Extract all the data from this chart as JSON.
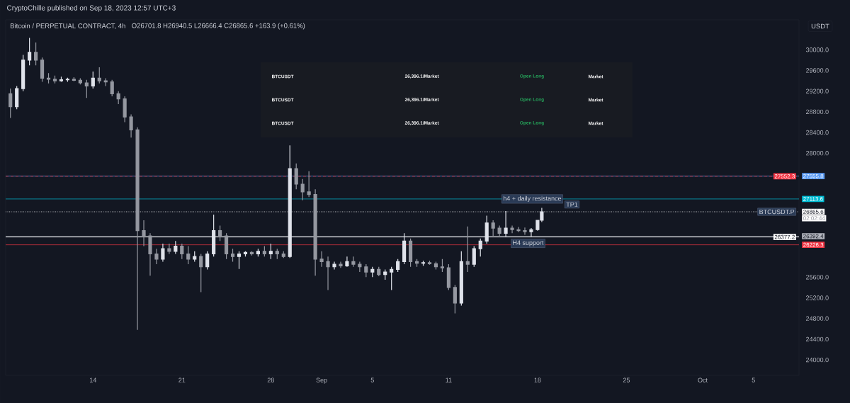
{
  "chart_data": {
    "type": "candlestick",
    "title": "Bitcoin / PERPETUAL CONTRACT, 4h",
    "subtitle": "O26701.8 H26940.5 L26666.4 C26865.6 +163.9 (+0.61%)",
    "x": [
      "2023-08-07T12:00",
      "2023-08-08T00:00",
      "2023-08-08T12:00",
      "2023-08-09T00:00",
      "2023-08-09T12:00",
      "2023-08-10T00:00",
      "2023-08-10T12:00",
      "2023-08-11T00:00",
      "2023-08-11T12:00",
      "2023-08-12T00:00",
      "2023-08-12T12:00",
      "2023-08-13T00:00",
      "2023-08-13T12:00",
      "2023-08-14T00:00",
      "2023-08-14T12:00",
      "2023-08-15T00:00",
      "2023-08-15T12:00",
      "2023-08-16T00:00",
      "2023-08-16T12:00",
      "2023-08-17T00:00",
      "2023-08-17T12:00",
      "2023-08-18T00:00",
      "2023-08-18T12:00",
      "2023-08-19T00:00",
      "2023-08-19T12:00",
      "2023-08-20T00:00",
      "2023-08-20T12:00",
      "2023-08-21T00:00",
      "2023-08-21T12:00",
      "2023-08-22T00:00",
      "2023-08-22T12:00",
      "2023-08-23T00:00",
      "2023-08-23T12:00",
      "2023-08-24T00:00",
      "2023-08-24T12:00",
      "2023-08-25T00:00",
      "2023-08-25T12:00",
      "2023-08-26T00:00",
      "2023-08-26T12:00",
      "2023-08-27T00:00",
      "2023-08-27T12:00",
      "2023-08-28T00:00",
      "2023-08-28T12:00",
      "2023-08-29T00:00",
      "2023-08-29T12:00",
      "2023-08-30T00:00",
      "2023-08-30T12:00",
      "2023-08-31T00:00",
      "2023-08-31T12:00",
      "2023-09-01T00:00",
      "2023-09-01T12:00",
      "2023-09-02T00:00",
      "2023-09-02T12:00",
      "2023-09-03T00:00",
      "2023-09-03T12:00",
      "2023-09-04T00:00",
      "2023-09-04T12:00",
      "2023-09-05T00:00",
      "2023-09-05T12:00",
      "2023-09-06T00:00",
      "2023-09-06T12:00",
      "2023-09-07T00:00",
      "2023-09-07T12:00",
      "2023-09-08T00:00",
      "2023-09-08T12:00",
      "2023-09-09T00:00",
      "2023-09-09T12:00",
      "2023-09-10T00:00",
      "2023-09-10T12:00",
      "2023-09-11T00:00",
      "2023-09-11T12:00",
      "2023-09-12T00:00",
      "2023-09-12T12:00",
      "2023-09-13T00:00",
      "2023-09-13T12:00",
      "2023-09-14T00:00",
      "2023-09-14T12:00",
      "2023-09-15T00:00",
      "2023-09-15T12:00",
      "2023-09-16T00:00",
      "2023-09-16T12:00",
      "2023-09-17T00:00",
      "2023-09-17T12:00",
      "2023-09-18T00:00",
      "2023-09-18T08:00"
    ],
    "ohlc": [
      [
        29150,
        29250,
        28680,
        28900
      ],
      [
        28900,
        29300,
        28850,
        29250
      ],
      [
        29250,
        29900,
        29200,
        29800
      ],
      [
        29800,
        30230,
        29700,
        29950
      ],
      [
        29950,
        30140,
        29700,
        29800
      ],
      [
        29800,
        29850,
        29380,
        29450
      ],
      [
        29450,
        29550,
        29350,
        29430
      ],
      [
        29430,
        29500,
        29350,
        29400
      ],
      [
        29400,
        29480,
        29380,
        29420
      ],
      [
        29420,
        29460,
        29380,
        29430
      ],
      [
        29430,
        29470,
        29390,
        29410
      ],
      [
        29410,
        29450,
        29330,
        29360
      ],
      [
        29360,
        29420,
        29070,
        29300
      ],
      [
        29300,
        29580,
        29250,
        29450
      ],
      [
        29450,
        29660,
        29350,
        29400
      ],
      [
        29400,
        29450,
        29300,
        29380
      ],
      [
        29380,
        29420,
        29100,
        29150
      ],
      [
        29150,
        29200,
        28950,
        29050
      ],
      [
        29050,
        29100,
        28600,
        28700
      ],
      [
        28700,
        28750,
        28300,
        28450
      ],
      [
        28450,
        28500,
        24580,
        26500
      ],
      [
        26500,
        26700,
        26200,
        26400
      ],
      [
        26400,
        26450,
        25630,
        26050
      ],
      [
        26050,
        26150,
        25850,
        25950
      ],
      [
        25950,
        26250,
        25900,
        26150
      ],
      [
        26150,
        26250,
        26050,
        26100
      ],
      [
        26100,
        26300,
        26050,
        26200
      ],
      [
        26200,
        26250,
        25950,
        26050
      ],
      [
        26050,
        26200,
        25850,
        25950
      ],
      [
        25950,
        26100,
        25900,
        26000
      ],
      [
        26000,
        26050,
        25310,
        25800
      ],
      [
        25800,
        26100,
        25750,
        26050
      ],
      [
        26050,
        26810,
        26000,
        26500
      ],
      [
        26500,
        26600,
        26300,
        26400
      ],
      [
        26400,
        26450,
        25950,
        26050
      ],
      [
        26050,
        26150,
        25900,
        26000
      ],
      [
        26000,
        26100,
        25760,
        26050
      ],
      [
        26050,
        26100,
        26000,
        26080
      ],
      [
        26080,
        26100,
        26020,
        26050
      ],
      [
        26050,
        26150,
        26000,
        26100
      ],
      [
        26100,
        26200,
        26000,
        26050
      ],
      [
        26050,
        26250,
        25950,
        26100
      ],
      [
        26100,
        26150,
        25950,
        26050
      ],
      [
        26050,
        26100,
        25970,
        26000
      ],
      [
        26000,
        28150,
        25970,
        27700
      ],
      [
        27700,
        27800,
        27300,
        27400
      ],
      [
        27400,
        27500,
        27090,
        27250
      ],
      [
        27250,
        27650,
        27150,
        27200
      ],
      [
        27200,
        27300,
        25630,
        25950
      ],
      [
        25950,
        26100,
        25800,
        25900
      ],
      [
        25900,
        26000,
        25350,
        25800
      ],
      [
        25800,
        25900,
        25750,
        25850
      ],
      [
        25850,
        25900,
        25780,
        25820
      ],
      [
        25820,
        26000,
        25800,
        25900
      ],
      [
        25900,
        26000,
        25800,
        25850
      ],
      [
        25850,
        25900,
        25700,
        25800
      ],
      [
        25800,
        25850,
        25600,
        25700
      ],
      [
        25700,
        25800,
        25600,
        25750
      ],
      [
        25750,
        25800,
        25620,
        25650
      ],
      [
        25650,
        25750,
        25550,
        25700
      ],
      [
        25700,
        25800,
        25350,
        25750
      ],
      [
        25750,
        25950,
        25700,
        25900
      ],
      [
        25900,
        26450,
        25850,
        26300
      ],
      [
        26300,
        26350,
        25800,
        25900
      ],
      [
        25900,
        25950,
        25800,
        25870
      ],
      [
        25870,
        25920,
        25820,
        25880
      ],
      [
        25880,
        25920,
        25840,
        25860
      ],
      [
        25860,
        25900,
        25750,
        25800
      ],
      [
        25800,
        25950,
        25700,
        25780
      ],
      [
        25780,
        25850,
        25350,
        25400
      ],
      [
        25400,
        25450,
        24900,
        25100
      ],
      [
        25100,
        26100,
        25050,
        25900
      ],
      [
        25900,
        26580,
        25700,
        25850
      ],
      [
        25850,
        26200,
        25800,
        26150
      ],
      [
        26150,
        26350,
        26000,
        26300
      ],
      [
        26300,
        26790,
        26250,
        26650
      ],
      [
        26650,
        26700,
        26400,
        26550
      ],
      [
        26550,
        26600,
        26400,
        26450
      ],
      [
        26450,
        26880,
        26380,
        26550
      ],
      [
        26550,
        26600,
        26450,
        26520
      ],
      [
        26520,
        26570,
        26470,
        26500
      ],
      [
        26500,
        26560,
        26420,
        26480
      ],
      [
        26480,
        26550,
        26380,
        26520
      ],
      [
        26520,
        26700,
        26500,
        26700
      ],
      [
        26701.8,
        26940.5,
        26666.4,
        26865.6
      ]
    ],
    "xlim": [
      "2023-08-07T03:00",
      "2023-10-08T14:00"
    ],
    "xticks": [
      {
        "value": "2023-08-14",
        "label": "14"
      },
      {
        "value": "2023-08-21",
        "label": "21"
      },
      {
        "value": "2023-08-28",
        "label": "28"
      },
      {
        "value": "2023-09-01",
        "label": "Sep"
      },
      {
        "value": "2023-09-05",
        "label": "5"
      },
      {
        "value": "2023-09-11",
        "label": "11"
      },
      {
        "value": "2023-09-18",
        "label": "18"
      },
      {
        "value": "2023-09-25",
        "label": "25"
      },
      {
        "value": "2023-10-01",
        "label": "Oct"
      },
      {
        "value": "2023-10-05",
        "label": "5"
      }
    ],
    "ylim": [
      23700,
      30580
    ],
    "legend": "right",
    "yticks": [
      {
        "value": 30000,
        "label": "30000.0"
      },
      {
        "value": 29600,
        "label": "29600.0"
      },
      {
        "value": 29200,
        "label": "29200.0"
      },
      {
        "value": 28800,
        "label": "28800.0"
      },
      {
        "value": 28400,
        "label": "28400.0"
      },
      {
        "value": 28000,
        "label": "28000.0"
      },
      {
        "value": 25600,
        "label": "25600.0"
      },
      {
        "value": 25200,
        "label": "25200.0"
      },
      {
        "value": 24800,
        "label": "24800.0"
      },
      {
        "value": 24400,
        "label": "24400.0"
      },
      {
        "value": 24000,
        "label": "24000.0"
      }
    ],
    "ref_lines": [
      {
        "axis": "y",
        "value": 27555.8,
        "label": "27555.8",
        "color": "#5b9cf6",
        "line_style": "solid"
      },
      {
        "axis": "y",
        "value": 27552.3,
        "label": "27552.3",
        "color": "#f23645",
        "line_style": "dashed"
      },
      {
        "axis": "y",
        "value": 27113.6,
        "label": "27113.6",
        "color": "#00bcd4",
        "line_style": "solid"
      },
      {
        "axis": "y",
        "value": 26865.6,
        "label": "26865.6",
        "color": "#ffffff",
        "line_style": "dotted"
      },
      {
        "axis": "y",
        "value": 26392.4,
        "label": "26392.4",
        "color": "#b2b5be",
        "line_style": "solid"
      },
      {
        "axis": "y",
        "value": 26377.2,
        "label": "26377.2",
        "color": "#ffffff",
        "line_style": "solid"
      },
      {
        "axis": "y",
        "value": 26226.3,
        "label": "26226.3",
        "color": "#f23645",
        "line_style": "solid"
      }
    ],
    "annotations": [
      "CryptoChille published on Sep 18, 2023 12:57 UTC+3",
      "USDT",
      "02:02:44",
      "BTCUSDT",
      "26,396.1/Market",
      "Open Long",
      "Market",
      "BTCUSDT",
      "26,396.1/Market",
      "Open Long",
      "Market",
      "BTCUSDT",
      "26,396.1/Market",
      "Open Long",
      "Market",
      {
        "text": "h4 + daily resistance",
        "x": "2023-09-17T14:00",
        "y": 27113.6
      },
      {
        "text": "TP1",
        "x": "2023-09-20T17:00",
        "y": 27006
      },
      {
        "text": "H4 support",
        "x": "2023-09-17T06:00",
        "y": 26254
      },
      {
        "text": "BTCUSDT.P",
        "x": "2023-10-06T20:00",
        "y": 26865.6
      }
    ]
  }
}
